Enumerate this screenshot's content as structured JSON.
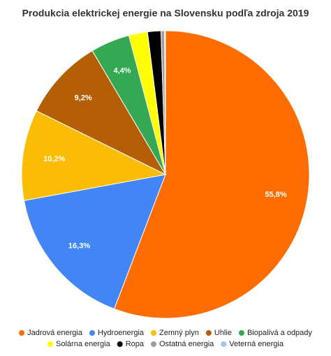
{
  "chart_data": {
    "type": "pie",
    "title": "Produkcia elektrickej energie na Slovensku podľa zdroja 2019",
    "categories": [
      "Jadrová energia",
      "Hydroenergia",
      "Zemný plyn",
      "Uhlie",
      "Biopalivá a odpady",
      "Solárna energia",
      "Ropa",
      "Ostatná energia",
      "Veterná energia"
    ],
    "values": [
      55.8,
      16.3,
      10.2,
      9.2,
      4.4,
      2.1,
      1.5,
      0.4,
      0.1
    ],
    "value_labels": [
      "55,8%",
      "16,3%",
      "10,2%",
      "9,2%",
      "4,4%",
      null,
      null,
      null,
      null
    ],
    "colors": [
      "#ff6d01",
      "#4285f4",
      "#fbbc04",
      "#b45f06",
      "#34a853",
      "#ffff00",
      "#000000",
      "#9e9e9e",
      "#9fc5e8"
    ],
    "legend": "bottom"
  }
}
